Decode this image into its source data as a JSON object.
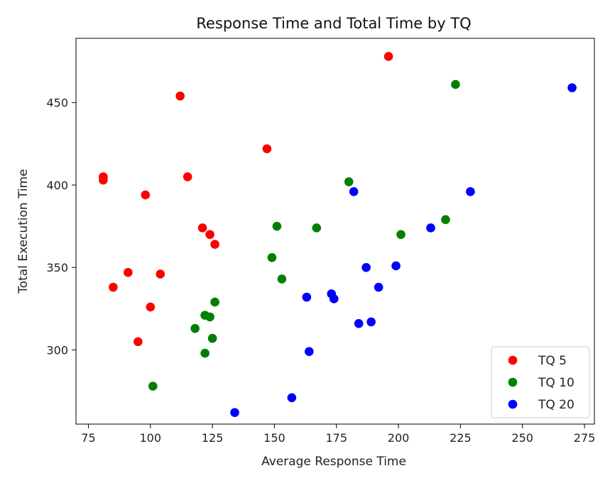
{
  "chart_data": {
    "type": "scatter",
    "title": "Response Time and Total Time by TQ",
    "xlabel": "Average Response Time",
    "ylabel": "Total Execution Time",
    "xlim": [
      70,
      279
    ],
    "ylim": [
      255,
      489
    ],
    "xticks": [
      75,
      100,
      125,
      150,
      175,
      200,
      225,
      250,
      275
    ],
    "yticks": [
      300,
      350,
      400,
      450
    ],
    "grid": false,
    "legend_position": "lower-right",
    "series": [
      {
        "name": "TQ 5",
        "color": "#ff0000",
        "points": [
          [
            81,
            405
          ],
          [
            81,
            403
          ],
          [
            85,
            338
          ],
          [
            91,
            347
          ],
          [
            95,
            305
          ],
          [
            98,
            394
          ],
          [
            100,
            326
          ],
          [
            104,
            346
          ],
          [
            112,
            454
          ],
          [
            115,
            405
          ],
          [
            121,
            374
          ],
          [
            124,
            370
          ],
          [
            126,
            364
          ],
          [
            147,
            422
          ],
          [
            196,
            478
          ]
        ]
      },
      {
        "name": "TQ 10",
        "color": "#008000",
        "points": [
          [
            101,
            278
          ],
          [
            118,
            313
          ],
          [
            122,
            321
          ],
          [
            122,
            298
          ],
          [
            124,
            320
          ],
          [
            125,
            307
          ],
          [
            126,
            329
          ],
          [
            149,
            356
          ],
          [
            151,
            375
          ],
          [
            153,
            343
          ],
          [
            167,
            374
          ],
          [
            180,
            402
          ],
          [
            201,
            370
          ],
          [
            219,
            379
          ],
          [
            223,
            461
          ]
        ]
      },
      {
        "name": "TQ 20",
        "color": "#0000ff",
        "points": [
          [
            134,
            262
          ],
          [
            157,
            271
          ],
          [
            163,
            332
          ],
          [
            164,
            299
          ],
          [
            173,
            334
          ],
          [
            174,
            331
          ],
          [
            182,
            396
          ],
          [
            184,
            316
          ],
          [
            187,
            350
          ],
          [
            189,
            317
          ],
          [
            192,
            338
          ],
          [
            199,
            351
          ],
          [
            213,
            374
          ],
          [
            229,
            396
          ],
          [
            270,
            459
          ]
        ]
      }
    ]
  }
}
